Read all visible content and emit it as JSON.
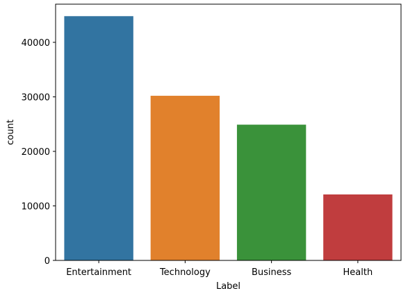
{
  "chart_data": {
    "type": "bar",
    "categories": [
      "Entertainment",
      "Technology",
      "Business",
      "Health"
    ],
    "values": [
      44800,
      30200,
      24900,
      12100
    ],
    "colors": [
      "#3274a1",
      "#e1812c",
      "#3a923a",
      "#c03d3e"
    ],
    "title": "",
    "xlabel": "Label",
    "ylabel": "count",
    "ylim": [
      0,
      47000
    ],
    "yticks": [
      0,
      10000,
      20000,
      30000,
      40000
    ],
    "grid": false
  }
}
